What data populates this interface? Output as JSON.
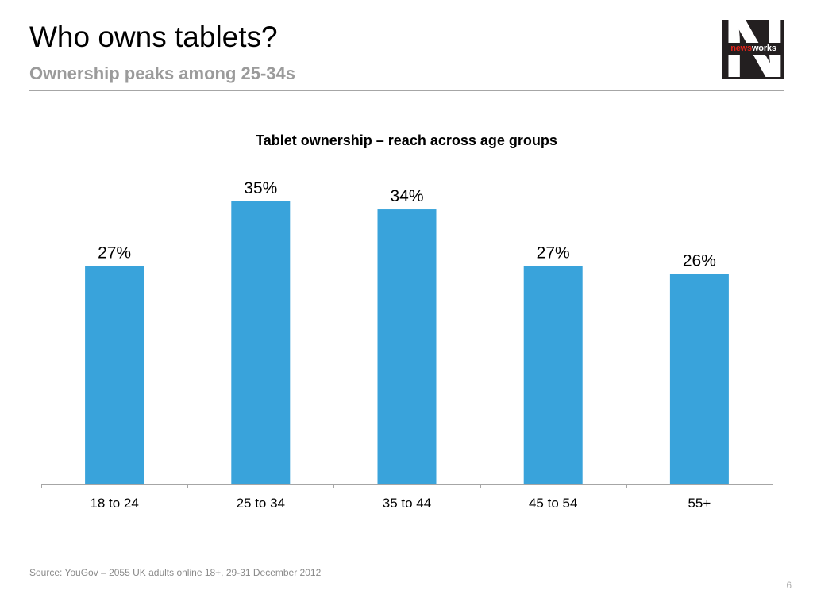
{
  "header": {
    "title": "Who owns tablets?",
    "subtitle": "Ownership peaks among 25-34s"
  },
  "logo": {
    "letter": "N",
    "text_news": "news",
    "text_works": "works"
  },
  "chart_data": {
    "type": "bar",
    "title": "Tablet ownership – reach across age groups",
    "categories": [
      "18 to 24",
      "25 to 34",
      "35 to 44",
      "45 to 54",
      "55+"
    ],
    "values": [
      27,
      35,
      34,
      27,
      26
    ],
    "data_labels": [
      "27%",
      "35%",
      "34%",
      "27%",
      "26%"
    ],
    "ylim": [
      0,
      40
    ],
    "xlabel": "",
    "ylabel": "",
    "grid": false,
    "bar_color": "#39a3db"
  },
  "footer": {
    "source": "Source: YouGov – 2055 UK adults online 18+, 29-31 December 2012",
    "page_number": "6"
  }
}
